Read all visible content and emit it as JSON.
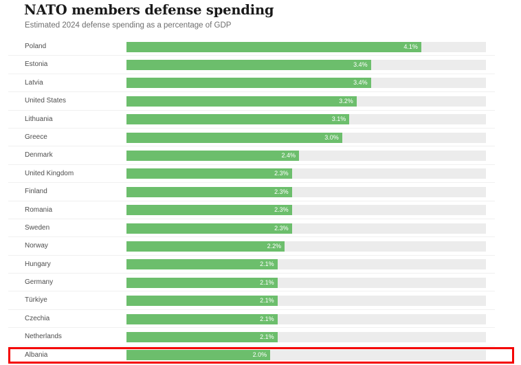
{
  "header": {
    "title": "NATO members defense spending",
    "subtitle": "Estimated 2024 defense spending as a percentage of GDP"
  },
  "chart_data": {
    "type": "bar",
    "orientation": "horizontal",
    "title": "NATO members defense spending",
    "subtitle": "Estimated 2024 defense spending as a percentage of GDP",
    "value_unit": "percent of GDP",
    "xlim": [
      0,
      5
    ],
    "grid": false,
    "legend": "none",
    "categories": [
      "Poland",
      "Estonia",
      "Latvia",
      "United States",
      "Lithuania",
      "Greece",
      "Denmark",
      "United Kingdom",
      "Finland",
      "Romania",
      "Sweden",
      "Norway",
      "Hungary",
      "Germany",
      "Türkiye",
      "Czechia",
      "Netherlands",
      "Albania"
    ],
    "values": [
      4.1,
      3.4,
      3.4,
      3.2,
      3.1,
      3.0,
      2.4,
      2.3,
      2.3,
      2.3,
      2.3,
      2.2,
      2.1,
      2.1,
      2.1,
      2.1,
      2.1,
      2.0
    ],
    "value_labels": [
      "4.1%",
      "3.4%",
      "3.4%",
      "3.2%",
      "3.1%",
      "3.0%",
      "2.4%",
      "2.3%",
      "2.3%",
      "2.3%",
      "2.3%",
      "2.2%",
      "2.1%",
      "2.1%",
      "2.1%",
      "2.1%",
      "2.1%",
      "2.0%"
    ],
    "colors": {
      "bar": "#6cbe6c",
      "track": "#ececec",
      "value_label": "#ffffff",
      "category_label": "#4d4d4d",
      "separator": "#f0f0f0"
    },
    "annotation": {
      "type": "highlight-rectangle",
      "target": "Albania",
      "color": "#f40000"
    }
  }
}
